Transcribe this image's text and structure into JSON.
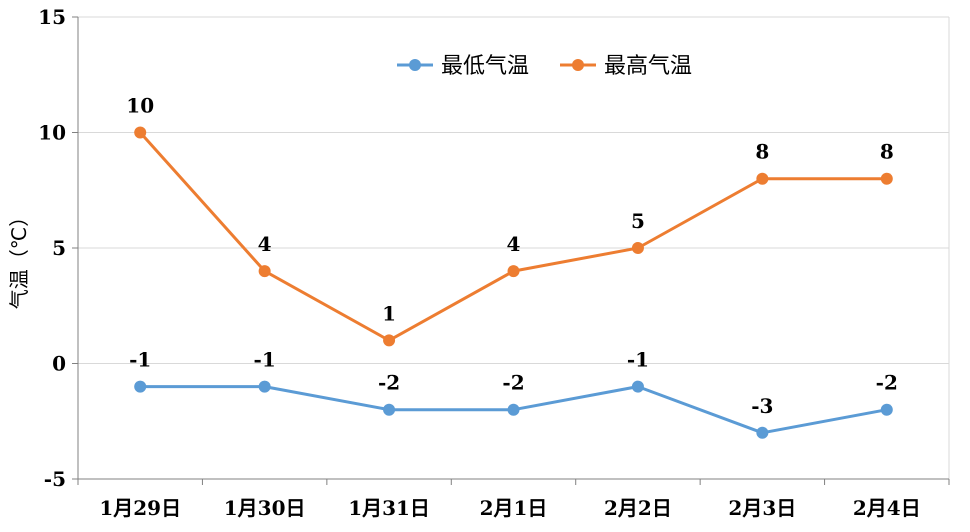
{
  "colors": {
    "series_low": "#5B9BD5",
    "series_high": "#ED7D31",
    "grid": "#D9D9D9",
    "axis": "#808080"
  },
  "chart_data": {
    "type": "line",
    "categories": [
      "1月29日",
      "1月30日",
      "1月31日",
      "2月1日",
      "2月2日",
      "2月3日",
      "2月4日"
    ],
    "series": [
      {
        "name": "最低气温",
        "values": [
          -1,
          -1,
          -2,
          -2,
          -1,
          -3,
          -2
        ],
        "color": "#5B9BD5"
      },
      {
        "name": "最高气温",
        "values": [
          10,
          4,
          1,
          4,
          5,
          8,
          8
        ],
        "color": "#ED7D31"
      }
    ],
    "ylabel": "气温（℃）",
    "ylim": [
      -5,
      15
    ],
    "yticks": [
      -5,
      0,
      5,
      10,
      15
    ],
    "grid": true,
    "legend_position": "top-center",
    "data_labels": true
  }
}
